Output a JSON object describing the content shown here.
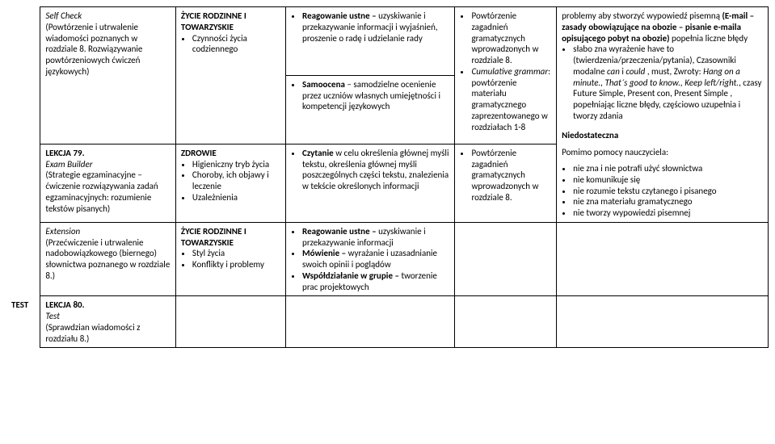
{
  "row1": {
    "c3_items": [
      {
        "lead": "Reagowanie ustne –",
        "rest": " uzyskiwanie i przekazywanie informacji i wyjaśnień, proszenie o radę i udzielanie rady"
      }
    ]
  },
  "row2": {
    "c1_title": "Self Check",
    "c1_body": "(Powtórzenie i utrwalenie wiadomości poznanych w rozdziale 8. Rozwiązywanie powtórzeniowych ćwiczeń językowych)",
    "c2_head": "ŻYCIE RODZINNE I TOWARZYSKIE",
    "c2_items": [
      "Czynności życia codziennego"
    ],
    "c3_items": [
      {
        "lead": "Samoocena",
        "rest": " – samodzielne ocenienie przez uczniów własnych umiejętności i kompetencji językowych"
      }
    ],
    "c4_items": [
      "Powtórzenie zagadnień gramatycznych wprowadzonych w rozdziale 8.",
      {
        "lead": "Cumulative grammar",
        "rest": ": powtórzenie materiału gramatycznego zaprezentowanego w rozdziałach 1-8"
      }
    ]
  },
  "row3": {
    "c1_title": "LEKCJA 79.",
    "c1_sub": "Exam Builder",
    "c1_body": "(Strategie egzaminacyjne – ćwiczenie rozwiązywania zadań egzaminacyjnych: rozumienie tekstów pisanych)",
    "c2_head": "ZDROWIE",
    "c2_items": [
      "Higieniczny tryb życia",
      "Choroby, ich objawy i leczenie",
      "Uzależnienia"
    ],
    "c3_items": [
      {
        "lead": "Czytanie",
        "rest": " w celu określenia głównej myśli tekstu, określenia głównej myśli poszczególnych części tekstu, znalezienia w tekście określonych informacji"
      }
    ],
    "c4_items": [
      "Powtórzenie zagadnień gramatycznych wprowadzonych w rozdziale 8."
    ]
  },
  "row4": {
    "c1_sub": "Extension",
    "c1_body": "(Przećwiczenie i utrwalenie nadobowiązkowego (biernego) słownictwa poznanego w rozdziale 8.)",
    "c2_head": "ŻYCIE RODZINNE I TOWARZYSKIE",
    "c2_items": [
      "Styl życia",
      "Konflikty i problemy"
    ],
    "c3_items": [
      {
        "lead": "Reagowanie ustne –",
        "rest": " uzyskiwanie i przekazywanie informacji"
      },
      {
        "lead": "Mówienie –",
        "rest": " wyrażanie i uzasadnianie swoich opinii i poglądów"
      },
      {
        "lead": "Współdziałanie w grupie –",
        "rest": " tworzenie prac projektowych"
      }
    ]
  },
  "row5": {
    "c0": "TEST",
    "c1_title": "LEKCJA 80.",
    "c1_sub": "Test",
    "c1_body": "(Sprawdzian wiadomości z rozdziału 8.)"
  },
  "rightcol": {
    "p1_a": "problemy aby stworzyć wypowiedź pisemną ",
    "p1_b": "(E-mail – zasady obowiązujące na obozie – pisanie e-maila opisującego pobyt na obozie)",
    "p1_c": " popełnia liczne błędy",
    "li1_a": "słabo zna wyrażenie have to (twierdzenia/przeczenia/pytania), Czasowniki modalne ",
    "li1_b": "can",
    "li1_c": " i ",
    "li1_d": "could",
    "li1_e": " , must, Zwroty: ",
    "li1_f": "Hang on a minute., That´s good to know., Keep left/right.",
    "li1_g": ", czasy Future Simple, Present con, Present Simple , popełniając liczne błędy, częściowo uzupełnia i tworzy zdania",
    "h2": "Niedostateczna",
    "p2": "Pomimo pomocy nauczyciela:",
    "list2": [
      "nie zna i nie potrafi użyć słownictwa",
      "nie komunikuje się",
      "nie rozumie tekstu czytanego i pisanego",
      "nie zna materiału gramatycznego",
      "nie tworzy wypowiedzi pisemnej"
    ]
  }
}
